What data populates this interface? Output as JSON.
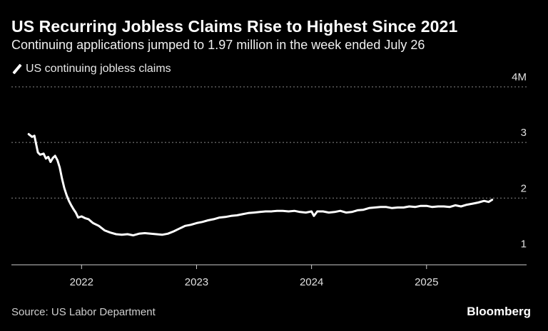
{
  "title": "US Recurring Jobless Claims Rise to Highest Since 2021",
  "subtitle": "Continuing applications jumped to 1.97 million in the week ended July 26",
  "legend_label": "US continuing jobless claims",
  "source": "Source: US Labor Department",
  "brand": "Bloomberg",
  "colors": {
    "background": "#000000",
    "line": "#ffffff",
    "grid": "#8a8a8a",
    "text": "#ffffff"
  },
  "chart_data": {
    "type": "line",
    "series": [
      {
        "name": "US continuing jobless claims",
        "x": [
          2021.54,
          2021.57,
          2021.59,
          2021.62,
          2021.64,
          2021.67,
          2021.69,
          2021.71,
          2021.73,
          2021.75,
          2021.77,
          2021.79,
          2021.81,
          2021.83,
          2021.85,
          2021.87,
          2021.89,
          2021.91,
          2021.93,
          2021.95,
          2021.97,
          2022.0,
          2022.03,
          2022.06,
          2022.1,
          2022.15,
          2022.2,
          2022.25,
          2022.3,
          2022.35,
          2022.4,
          2022.45,
          2022.5,
          2022.55,
          2022.6,
          2022.65,
          2022.7,
          2022.75,
          2022.8,
          2022.85,
          2022.9,
          2022.95,
          2023.0,
          2023.05,
          2023.1,
          2023.15,
          2023.2,
          2023.25,
          2023.3,
          2023.35,
          2023.4,
          2023.45,
          2023.5,
          2023.55,
          2023.6,
          2023.65,
          2023.7,
          2023.75,
          2023.8,
          2023.85,
          2023.9,
          2023.95,
          2024.0,
          2024.02,
          2024.05,
          2024.1,
          2024.15,
          2024.2,
          2024.25,
          2024.3,
          2024.35,
          2024.4,
          2024.45,
          2024.5,
          2024.55,
          2024.6,
          2024.65,
          2024.7,
          2024.75,
          2024.8,
          2024.85,
          2024.9,
          2024.95,
          2025.0,
          2025.05,
          2025.1,
          2025.15,
          2025.2,
          2025.25,
          2025.3,
          2025.35,
          2025.4,
          2025.45,
          2025.5,
          2025.54,
          2025.57
        ],
        "values": [
          3.15,
          3.1,
          3.12,
          2.82,
          2.78,
          2.8,
          2.71,
          2.74,
          2.65,
          2.72,
          2.76,
          2.68,
          2.55,
          2.35,
          2.18,
          2.05,
          1.95,
          1.87,
          1.8,
          1.74,
          1.65,
          1.67,
          1.64,
          1.62,
          1.55,
          1.5,
          1.42,
          1.38,
          1.35,
          1.34,
          1.35,
          1.33,
          1.36,
          1.37,
          1.36,
          1.35,
          1.34,
          1.36,
          1.4,
          1.45,
          1.5,
          1.52,
          1.55,
          1.57,
          1.6,
          1.62,
          1.65,
          1.66,
          1.68,
          1.69,
          1.71,
          1.73,
          1.74,
          1.75,
          1.76,
          1.76,
          1.77,
          1.77,
          1.76,
          1.77,
          1.75,
          1.74,
          1.76,
          1.68,
          1.76,
          1.76,
          1.74,
          1.75,
          1.77,
          1.74,
          1.75,
          1.78,
          1.79,
          1.82,
          1.83,
          1.84,
          1.84,
          1.82,
          1.83,
          1.83,
          1.85,
          1.84,
          1.86,
          1.86,
          1.84,
          1.85,
          1.85,
          1.84,
          1.87,
          1.85,
          1.88,
          1.9,
          1.92,
          1.95,
          1.93,
          1.97
        ]
      }
    ],
    "x_ticks": [
      2022,
      2023,
      2024,
      2025
    ],
    "x_tick_labels": [
      "2022",
      "2023",
      "2024",
      "2025"
    ],
    "y_ticks": [
      1,
      2,
      3,
      4
    ],
    "y_tick_labels": [
      "1",
      "2",
      "3",
      "4M"
    ],
    "xlim": [
      2021.39,
      2025.87
    ],
    "ylim": [
      0.8,
      4.0
    ],
    "grid": true,
    "legend": "top-left"
  }
}
